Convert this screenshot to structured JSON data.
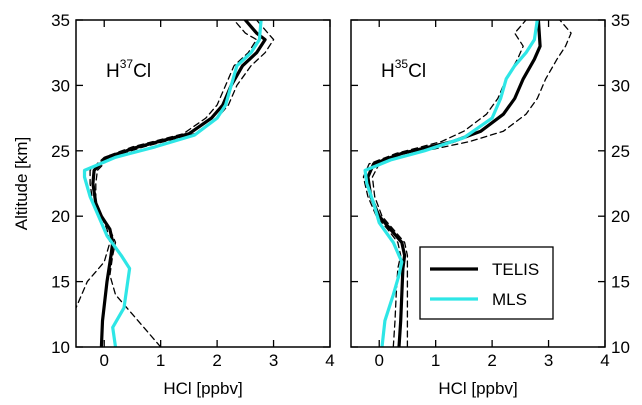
{
  "chart_data": [
    {
      "type": "line",
      "panel_label": {
        "base": "H",
        "superscript": "37",
        "suffix": "Cl"
      },
      "xlabel": "HCl [ppbv]",
      "ylabel": "Altitude [km]",
      "xlim": [
        -0.5,
        4
      ],
      "ylim": [
        10,
        35
      ],
      "xticks": [
        0,
        1,
        2,
        3,
        4
      ],
      "yticks": [
        10,
        15,
        20,
        25,
        30,
        35
      ],
      "y_tick_labels_side": "left",
      "series": [
        {
          "name": "TELIS",
          "style": "solid",
          "color": "#000000",
          "width": 3.2,
          "points": [
            [
              -0.05,
              10
            ],
            [
              -0.03,
              12
            ],
            [
              0.05,
              15
            ],
            [
              0.12,
              17
            ],
            [
              0.15,
              18
            ],
            [
              0.1,
              19
            ],
            [
              -0.05,
              20
            ],
            [
              -0.15,
              21
            ],
            [
              -0.2,
              22.5
            ],
            [
              -0.18,
              23.5
            ],
            [
              0.05,
              24.5
            ],
            [
              0.6,
              25.3
            ],
            [
              1.5,
              26.3
            ],
            [
              1.9,
              27.5
            ],
            [
              2.1,
              28.5
            ],
            [
              2.25,
              30
            ],
            [
              2.45,
              31.5
            ],
            [
              2.7,
              32.5
            ],
            [
              2.85,
              33.5
            ],
            [
              2.7,
              34
            ],
            [
              2.5,
              35
            ]
          ]
        },
        {
          "name": "",
          "style": "dashed",
          "color": "#000000",
          "width": 1.3,
          "points": [
            [
              1.0,
              10
            ],
            [
              0.6,
              12
            ],
            [
              0.2,
              14
            ],
            [
              0.1,
              15.5
            ],
            [
              0.15,
              17
            ],
            [
              0.2,
              18
            ],
            [
              0.1,
              19
            ],
            [
              -0.05,
              20
            ],
            [
              -0.15,
              21
            ],
            [
              -0.15,
              22.5
            ],
            [
              -0.12,
              23.5
            ],
            [
              0.1,
              24.5
            ],
            [
              0.7,
              25.3
            ],
            [
              1.6,
              26.3
            ],
            [
              2.0,
              27.5
            ],
            [
              2.2,
              28.5
            ],
            [
              2.35,
              30
            ],
            [
              2.6,
              31.5
            ],
            [
              2.85,
              32.5
            ],
            [
              3.0,
              33.5
            ],
            [
              2.9,
              34
            ],
            [
              2.7,
              35
            ]
          ]
        },
        {
          "name": "",
          "style": "dashed",
          "color": "#000000",
          "width": 1.3,
          "points": [
            [
              -0.6,
              12
            ],
            [
              -0.3,
              15
            ],
            [
              0.0,
              16.5
            ],
            [
              0.1,
              18
            ],
            [
              0.05,
              19
            ],
            [
              -0.05,
              20
            ],
            [
              -0.2,
              21
            ],
            [
              -0.25,
              22.5
            ],
            [
              -0.25,
              23.5
            ],
            [
              0.0,
              24.5
            ],
            [
              0.5,
              25.3
            ],
            [
              1.4,
              26.3
            ],
            [
              1.8,
              27.5
            ],
            [
              2.0,
              28.5
            ],
            [
              2.15,
              30
            ],
            [
              2.3,
              31.5
            ],
            [
              2.55,
              32.5
            ],
            [
              2.7,
              33.5
            ],
            [
              2.5,
              34
            ],
            [
              2.3,
              35
            ]
          ]
        },
        {
          "name": "MLS",
          "style": "solid",
          "color": "#2ee6e6",
          "width": 3.2,
          "points": [
            [
              0.2,
              10
            ],
            [
              0.15,
              11.5
            ],
            [
              0.35,
              13
            ],
            [
              0.4,
              14.5
            ],
            [
              0.45,
              16
            ],
            [
              0.3,
              17
            ],
            [
              0.05,
              18.5
            ],
            [
              -0.1,
              20
            ],
            [
              -0.25,
              21.5
            ],
            [
              -0.35,
              23
            ],
            [
              -0.35,
              23.5
            ],
            [
              0.2,
              24.5
            ],
            [
              0.9,
              25.3
            ],
            [
              1.6,
              26.2
            ],
            [
              2.0,
              27.5
            ],
            [
              2.15,
              28.5
            ],
            [
              2.25,
              30
            ],
            [
              2.35,
              31.5
            ],
            [
              2.6,
              32.5
            ],
            [
              2.75,
              33.5
            ],
            [
              2.78,
              35
            ]
          ]
        }
      ]
    },
    {
      "type": "line",
      "panel_label": {
        "base": "H",
        "superscript": "35",
        "suffix": "Cl"
      },
      "xlabel": "HCl [ppbv]",
      "ylabel": "",
      "xlim": [
        -0.5,
        4
      ],
      "ylim": [
        10,
        35
      ],
      "xticks": [
        0,
        1,
        2,
        3,
        4
      ],
      "yticks": [
        10,
        15,
        20,
        25,
        30,
        35
      ],
      "y_tick_labels_side": "right",
      "legend": {
        "placement": "bottom-right",
        "entries": [
          "TELIS",
          "MLS"
        ]
      },
      "series": [
        {
          "name": "TELIS",
          "style": "solid",
          "color": "#000000",
          "width": 3.2,
          "points": [
            [
              0.35,
              10
            ],
            [
              0.38,
              12
            ],
            [
              0.4,
              14
            ],
            [
              0.42,
              16
            ],
            [
              0.45,
              17
            ],
            [
              0.4,
              18
            ],
            [
              0.2,
              19
            ],
            [
              0.0,
              20
            ],
            [
              -0.15,
              21.5
            ],
            [
              -0.2,
              23
            ],
            [
              -0.1,
              24
            ],
            [
              0.4,
              24.8
            ],
            [
              1.3,
              25.7
            ],
            [
              1.8,
              26.5
            ],
            [
              2.2,
              27.8
            ],
            [
              2.4,
              29
            ],
            [
              2.55,
              30.5
            ],
            [
              2.75,
              32
            ],
            [
              2.85,
              33
            ],
            [
              2.82,
              35
            ]
          ]
        },
        {
          "name": "",
          "style": "dashed",
          "color": "#000000",
          "width": 1.3,
          "points": [
            [
              0.5,
              10
            ],
            [
              0.5,
              12
            ],
            [
              0.5,
              14
            ],
            [
              0.5,
              16
            ],
            [
              0.5,
              17
            ],
            [
              0.45,
              18
            ],
            [
              0.25,
              19
            ],
            [
              0.05,
              20
            ],
            [
              -0.08,
              21.5
            ],
            [
              -0.12,
              23
            ],
            [
              0.0,
              24
            ],
            [
              0.6,
              24.8
            ],
            [
              1.6,
              25.7
            ],
            [
              2.2,
              26.5
            ],
            [
              2.6,
              27.8
            ],
            [
              2.8,
              29
            ],
            [
              2.95,
              30.5
            ],
            [
              3.15,
              32
            ],
            [
              3.3,
              33
            ],
            [
              3.4,
              34
            ],
            [
              3.2,
              35
            ]
          ]
        },
        {
          "name": "",
          "style": "dashed",
          "color": "#000000",
          "width": 1.3,
          "points": [
            [
              0.25,
              10
            ],
            [
              0.28,
              12
            ],
            [
              0.3,
              14
            ],
            [
              0.33,
              16
            ],
            [
              0.38,
              17
            ],
            [
              0.33,
              18
            ],
            [
              0.15,
              19
            ],
            [
              -0.05,
              20
            ],
            [
              -0.2,
              21.5
            ],
            [
              -0.28,
              23
            ],
            [
              -0.18,
              24
            ],
            [
              0.3,
              24.8
            ],
            [
              1.1,
              25.7
            ],
            [
              1.5,
              26.5
            ],
            [
              1.9,
              27.8
            ],
            [
              2.1,
              29
            ],
            [
              2.25,
              30.5
            ],
            [
              2.45,
              32
            ],
            [
              2.55,
              33
            ],
            [
              2.4,
              34
            ],
            [
              2.6,
              35
            ]
          ]
        },
        {
          "name": "MLS",
          "style": "solid",
          "color": "#2ee6e6",
          "width": 3.2,
          "points": [
            [
              0.05,
              10
            ],
            [
              0.1,
              12
            ],
            [
              0.25,
              14
            ],
            [
              0.35,
              15.5
            ],
            [
              0.4,
              16.5
            ],
            [
              0.25,
              18
            ],
            [
              0.0,
              19.5
            ],
            [
              -0.1,
              21
            ],
            [
              -0.22,
              22.5
            ],
            [
              -0.25,
              23.5
            ],
            [
              0.2,
              24.3
            ],
            [
              0.8,
              25
            ],
            [
              1.5,
              26
            ],
            [
              2.0,
              27.5
            ],
            [
              2.15,
              29
            ],
            [
              2.25,
              30.5
            ],
            [
              2.4,
              31.5
            ],
            [
              2.6,
              32.5
            ],
            [
              2.75,
              33.5
            ],
            [
              2.8,
              35
            ]
          ]
        }
      ]
    }
  ]
}
